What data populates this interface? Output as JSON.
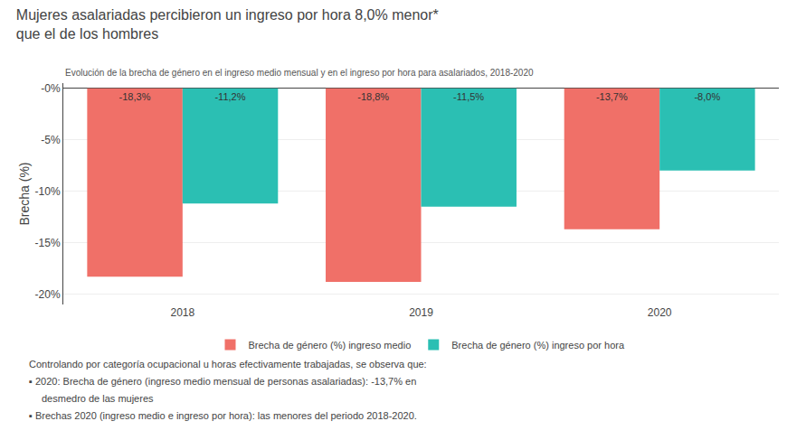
{
  "chart_data": {
    "type": "bar",
    "title": "Mujeres asalariadas percibieron un ingreso por hora 8,0% menor*\nque el de los hombres",
    "subtitle": "Evolución de la brecha de género en el ingreso medio mensual y en el ingreso por hora para asalariados, 2018-2020",
    "ylabel": "Brecha (%)",
    "categories": [
      "2018",
      "2019",
      "2020"
    ],
    "series": [
      {
        "name": "Brecha de género (%) ingreso medio",
        "color": "#F07068",
        "values": [
          -18.3,
          -18.8,
          -13.7
        ],
        "value_labels": [
          "-18,3%",
          "-18,8%",
          "-13,7%"
        ]
      },
      {
        "name": "Brecha de género (%) ingreso por hora",
        "color": "#2BBFB3",
        "values": [
          -11.2,
          -11.5,
          -8.0
        ],
        "value_labels": [
          "-11,2%",
          "-11,5%",
          "-8,0%"
        ]
      }
    ],
    "ylim": [
      -21,
      0.5
    ],
    "yticks": [
      {
        "value": 0,
        "label": "-0%"
      },
      {
        "value": -5,
        "label": "-5%"
      },
      {
        "value": -10,
        "label": "-10%"
      },
      {
        "value": -15,
        "label": "-15%"
      },
      {
        "value": -20,
        "label": "-20%"
      }
    ],
    "grid": true,
    "legend": "bottom",
    "data_labels": true,
    "annotations": [
      "Controlando por categoría ocupacional u horas efectivamente trabajadas, se observa que:",
      "▪ 2020: Brecha de género (ingreso medio mensual de personas asalariadas): -13,7% en",
      "desmedro de las mujeres",
      "▪ Brechas 2020 (ingreso medio e ingreso por hora): las menores del periodo 2018-2020."
    ]
  }
}
